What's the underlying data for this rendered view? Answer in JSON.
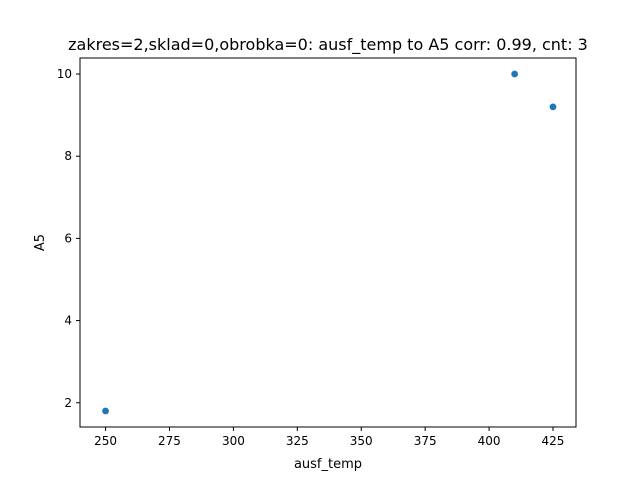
{
  "chart_data": {
    "type": "scatter",
    "title": "zakres=2,sklad=0,obrobka=0: ausf_temp to A5 corr: 0.99, cnt: 3",
    "xlabel": "ausf_temp",
    "ylabel": "A5",
    "xlim": [
      240.0,
      434.0
    ],
    "ylim": [
      1.41,
      10.39
    ],
    "xticks": [
      250,
      275,
      300,
      325,
      350,
      375,
      400,
      425
    ],
    "yticks": [
      2,
      4,
      6,
      8,
      10
    ],
    "grid": false,
    "legend": false,
    "series": [
      {
        "x": [
          250,
          410,
          425
        ],
        "y": [
          1.8,
          10.0,
          9.2
        ]
      }
    ],
    "colors": {
      "marker": "#1f77b4",
      "axes": "#000000",
      "background": "#ffffff"
    }
  }
}
